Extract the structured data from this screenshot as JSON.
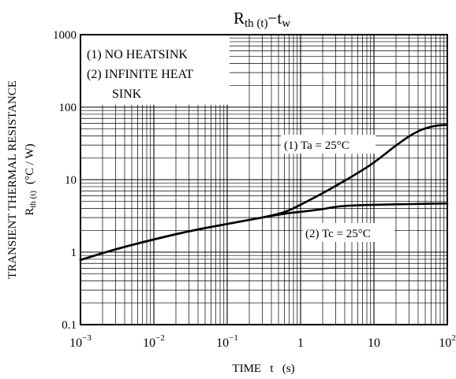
{
  "chart_data": {
    "type": "line",
    "title": {
      "main": "R",
      "main_sub": "th (t)",
      "sep": "−",
      "rhs": "t",
      "rhs_sub": "w"
    },
    "xlabel": "TIME   t   (s)",
    "ylabel": {
      "line1": "TRANSIENT THERMAL RESISTANCE",
      "line2_main": "R",
      "line2_sub": "th (t)",
      "line2_unit": "(°C / W)"
    },
    "x_scale": "log",
    "y_scale": "log",
    "xlim": [
      0.001,
      100
    ],
    "ylim": [
      0.1,
      1000
    ],
    "grid": true,
    "x_ticks": [
      {
        "value": 0.001,
        "base": "10",
        "exp": "−3"
      },
      {
        "value": 0.01,
        "base": "10",
        "exp": "−2"
      },
      {
        "value": 0.1,
        "base": "10",
        "exp": "−1"
      },
      {
        "value": 1,
        "base": "1",
        "exp": ""
      },
      {
        "value": 10,
        "base": "10",
        "exp": ""
      },
      {
        "value": 100,
        "base": "10",
        "exp": "2"
      }
    ],
    "y_ticks": [
      {
        "value": 0.1,
        "label": "0.1"
      },
      {
        "value": 1,
        "label": "1"
      },
      {
        "value": 10,
        "label": "10"
      },
      {
        "value": 100,
        "label": "100"
      },
      {
        "value": 1000,
        "label": "1000"
      }
    ],
    "legend": {
      "position": "top-left",
      "items": [
        "(1)  NO HEATSINK",
        "(2)  INFINITE HEAT",
        "SINK"
      ]
    },
    "series": [
      {
        "name": "(1) Ta = 25°C",
        "points": [
          [
            0.001,
            0.78
          ],
          [
            0.003,
            1.1
          ],
          [
            0.01,
            1.5
          ],
          [
            0.03,
            1.95
          ],
          [
            0.1,
            2.45
          ],
          [
            0.3,
            3.0
          ],
          [
            0.6,
            3.5
          ],
          [
            1,
            4.5
          ],
          [
            2,
            6.5
          ],
          [
            3,
            8.2
          ],
          [
            5,
            11
          ],
          [
            10,
            17
          ],
          [
            20,
            30
          ],
          [
            40,
            48
          ],
          [
            70,
            56
          ],
          [
            100,
            57
          ]
        ]
      },
      {
        "name": "(2) Tc = 25°C",
        "points": [
          [
            0.001,
            0.78
          ],
          [
            0.003,
            1.1
          ],
          [
            0.01,
            1.5
          ],
          [
            0.03,
            1.95
          ],
          [
            0.1,
            2.45
          ],
          [
            0.3,
            3.0
          ],
          [
            0.6,
            3.4
          ],
          [
            1,
            3.6
          ],
          [
            2,
            3.9
          ],
          [
            3,
            4.25
          ],
          [
            5,
            4.4
          ],
          [
            10,
            4.5
          ],
          [
            30,
            4.6
          ],
          [
            100,
            4.7
          ]
        ]
      }
    ],
    "annotations": [
      "(1)  Ta = 25°C",
      "(2)  Tc = 25°C"
    ]
  }
}
